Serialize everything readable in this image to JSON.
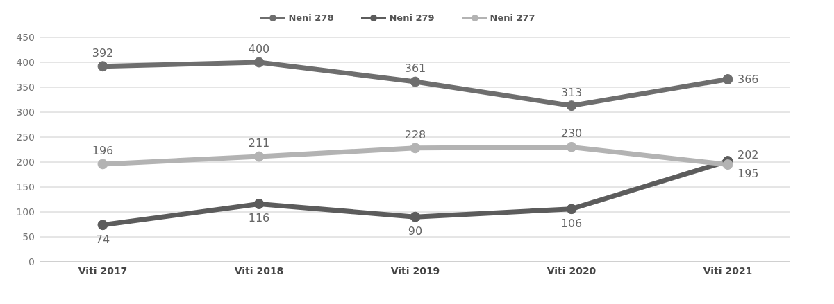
{
  "chart_data": {
    "type": "line",
    "categories": [
      "Viti 2017",
      "Viti 2018",
      "Viti 2019",
      "Viti 2020",
      "Viti 2021"
    ],
    "series": [
      {
        "name": "Neni 278",
        "color": "#6e6e6e",
        "values": [
          392,
          400,
          361,
          313,
          366
        ]
      },
      {
        "name": "Neni 279",
        "color": "#5c5c5c",
        "values": [
          74,
          116,
          90,
          106,
          202
        ]
      },
      {
        "name": "Neni 277",
        "color": "#b3b3b3",
        "values": [
          196,
          211,
          228,
          230,
          195
        ]
      }
    ],
    "ylim": [
      0,
      450
    ],
    "yticks": [
      0,
      50,
      100,
      150,
      200,
      250,
      300,
      350,
      400,
      450
    ],
    "grid": "y",
    "legend": "top",
    "marker": "circle",
    "line_style": "solid",
    "data_labels": true
  }
}
